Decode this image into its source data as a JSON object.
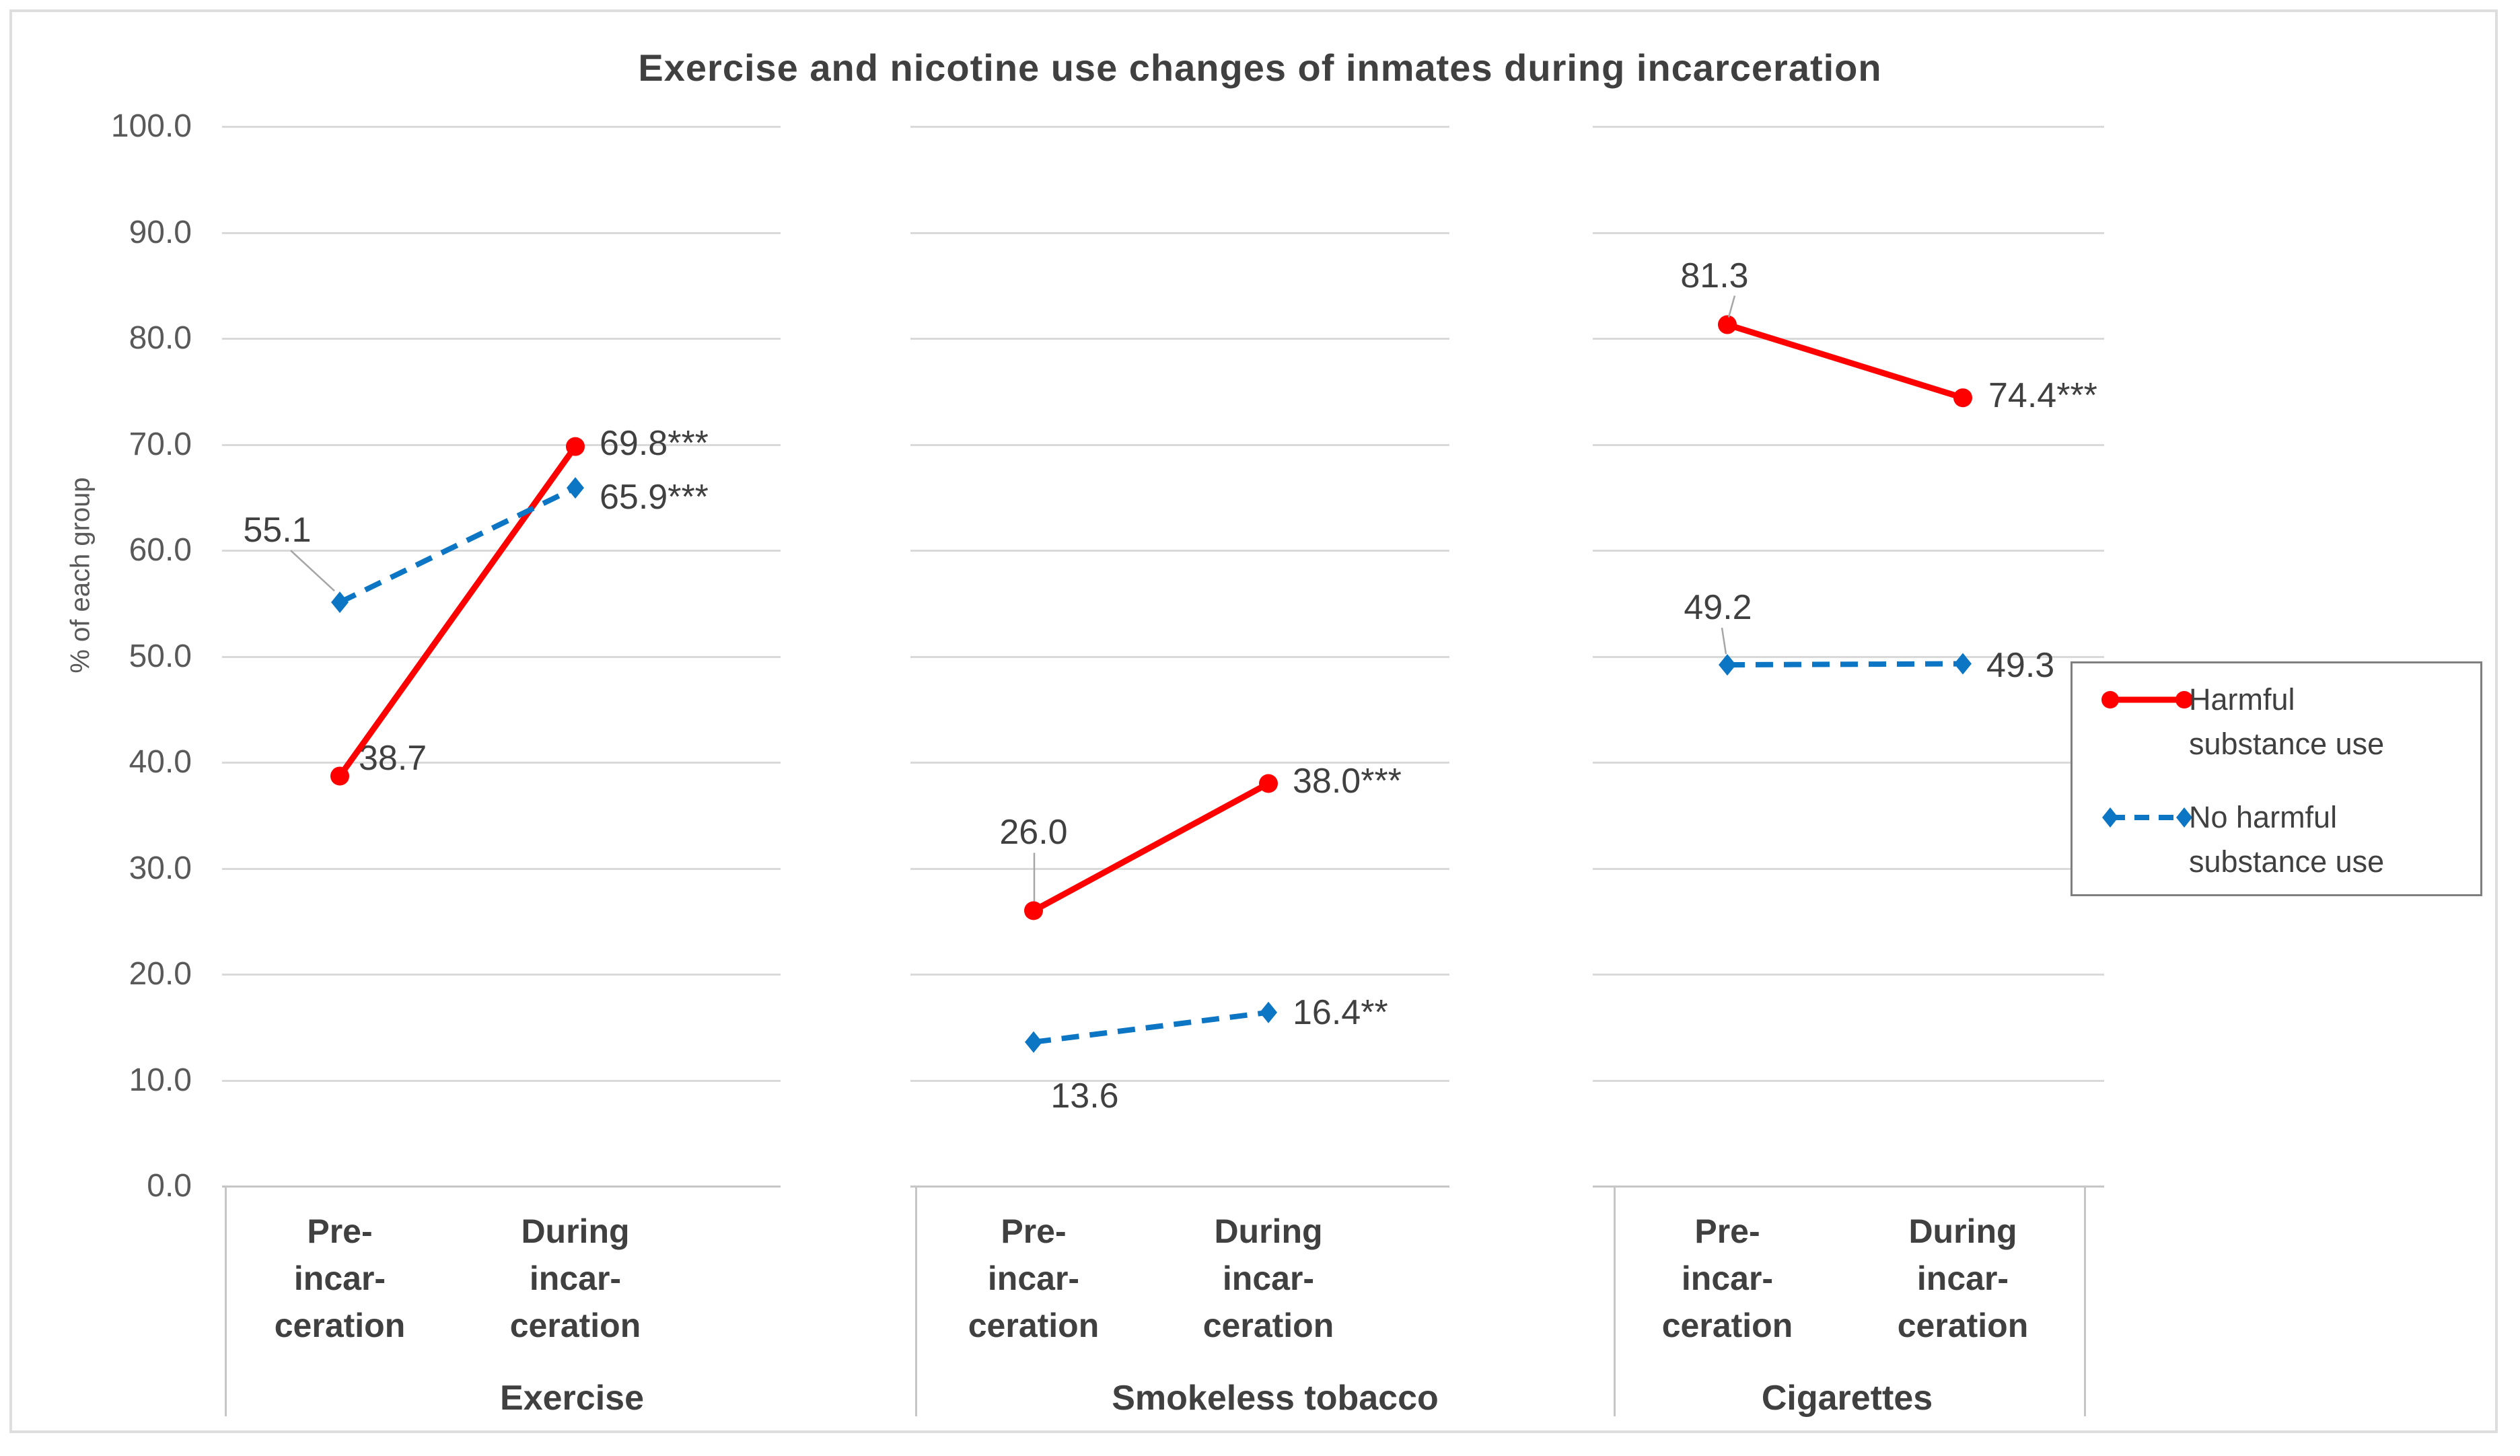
{
  "chart_data": {
    "type": "line",
    "title": "Exercise and nicotine use changes of inmates during incarceration",
    "ylabel": "% of each group",
    "ylim": [
      0,
      100
    ],
    "ytick_step": 10,
    "ytick_labels": [
      "0.0",
      "10.0",
      "20.0",
      "30.0",
      "40.0",
      "50.0",
      "60.0",
      "70.0",
      "80.0",
      "90.0",
      "100.0"
    ],
    "grid": "horizontal-per-panel",
    "legend_position": "right",
    "categories": [
      {
        "lines": [
          "Pre-",
          "incar-",
          "ceration"
        ]
      },
      {
        "lines": [
          "During",
          "incar-",
          "ceration"
        ]
      }
    ],
    "panels": [
      {
        "group": "Exercise",
        "series": [
          {
            "name": "Harmful substance use",
            "values": [
              38.7,
              69.8
            ],
            "labels": [
              "38.7",
              "69.8***"
            ]
          },
          {
            "name": "No harmful substance use",
            "values": [
              55.1,
              65.9
            ],
            "labels": [
              "55.1",
              "65.9***"
            ]
          }
        ]
      },
      {
        "group": "Smokeless tobacco",
        "series": [
          {
            "name": "Harmful substance use",
            "values": [
              26.0,
              38.0
            ],
            "labels": [
              "26.0",
              "38.0***"
            ]
          },
          {
            "name": "No harmful substance use",
            "values": [
              13.6,
              16.4
            ],
            "labels": [
              "13.6",
              "16.4**"
            ]
          }
        ]
      },
      {
        "group": "Cigarettes",
        "series": [
          {
            "name": "Harmful substance use",
            "values": [
              81.3,
              74.4
            ],
            "labels": [
              "81.3",
              "74.4***"
            ]
          },
          {
            "name": "No harmful substance use",
            "values": [
              49.2,
              49.3
            ],
            "labels": [
              "49.2",
              "49.3"
            ]
          }
        ]
      }
    ],
    "series_styles": [
      {
        "name": "Harmful substance use",
        "color": "#ff0000",
        "line": "solid",
        "marker": "circle"
      },
      {
        "name": "No harmful substance use",
        "color": "#0d76c4",
        "line": "dashed",
        "marker": "diamond"
      }
    ],
    "legend": [
      {
        "lines": [
          "Harmful",
          "substance use"
        ]
      },
      {
        "lines": [
          "No harmful",
          "substance use"
        ]
      }
    ]
  },
  "colors": {
    "red_series": "#ff0000",
    "blue_series": "#0d76c4",
    "text_dark": "#404040",
    "text_gray": "#595959",
    "gridline": "#d9d9d9",
    "axis_line": "#c6c6c6",
    "leader_line": "#a6a6a6",
    "legend_border": "#7f7f7f",
    "figure_border": "#dedede"
  }
}
